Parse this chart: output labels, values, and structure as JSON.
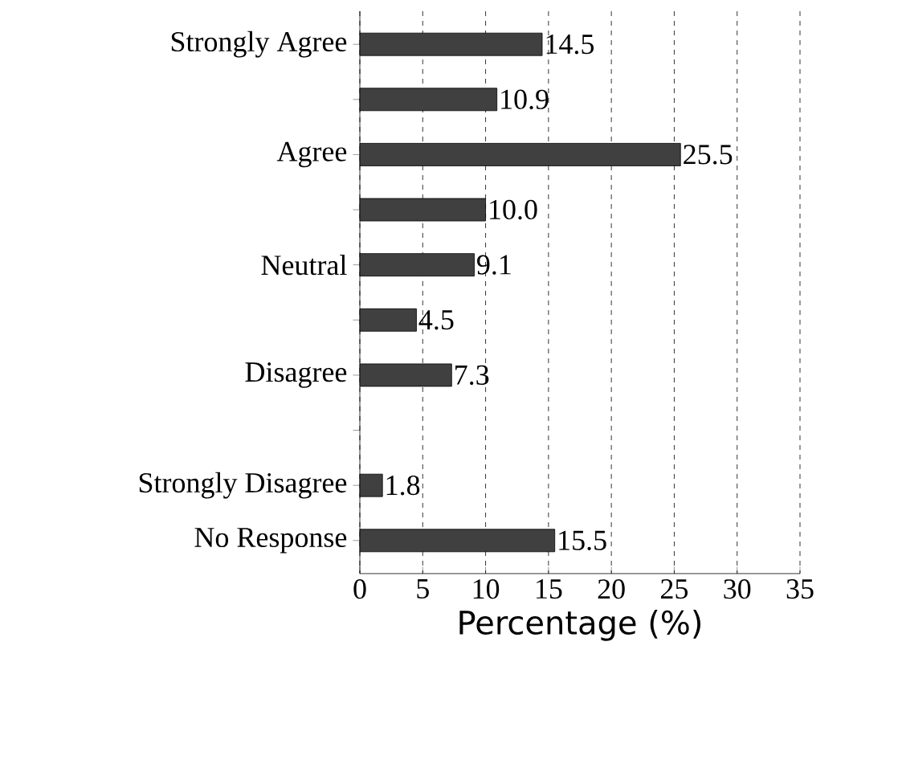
{
  "chart_data": {
    "type": "bar",
    "orientation": "horizontal",
    "xlabel": "Percentage (%)",
    "categories": [
      "Strongly Agree",
      null,
      "Agree",
      null,
      "Neutral",
      null,
      "Disagree",
      null,
      "Strongly Disagree",
      "No Response"
    ],
    "values": [
      14.5,
      10.9,
      25.5,
      10.0,
      9.1,
      4.5,
      7.3,
      null,
      1.8,
      15.5
    ],
    "value_labels": [
      "14.5",
      "10.9",
      "25.5",
      "10.0",
      "9.1",
      "4.5",
      "7.3",
      null,
      "1.8",
      "15.5"
    ],
    "color": "#404040",
    "xlim": [
      0,
      35
    ],
    "xticks": [
      0,
      5,
      10,
      15,
      20,
      25,
      30,
      35
    ],
    "grid": "x"
  }
}
